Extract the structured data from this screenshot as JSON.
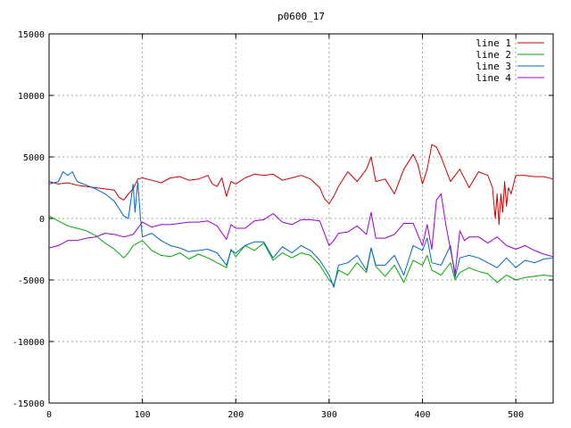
{
  "chart_data": {
    "type": "line",
    "title": "p0600_17",
    "xlabel": "",
    "ylabel": "",
    "xlim": [
      0,
      540
    ],
    "ylim": [
      -15000,
      15000
    ],
    "xticks": [
      0,
      100,
      200,
      300,
      400,
      500
    ],
    "yticks": [
      -15000,
      -10000,
      -5000,
      0,
      5000,
      10000,
      15000
    ],
    "grid": true,
    "legend_position": "top-right",
    "series": [
      {
        "name": "line 1",
        "color": "#cc0000",
        "x": [
          0,
          10,
          20,
          30,
          40,
          50,
          60,
          70,
          75,
          80,
          85,
          90,
          95,
          100,
          110,
          120,
          130,
          140,
          150,
          160,
          170,
          175,
          180,
          185,
          190,
          195,
          200,
          210,
          220,
          230,
          240,
          250,
          260,
          270,
          280,
          290,
          295,
          300,
          305,
          310,
          320,
          330,
          340,
          345,
          350,
          360,
          370,
          380,
          390,
          395,
          400,
          405,
          410,
          415,
          420,
          430,
          440,
          450,
          460,
          470,
          475,
          478,
          480,
          482,
          484,
          486,
          488,
          490,
          492,
          495,
          500,
          510,
          520,
          530,
          540
        ],
        "y": [
          3000,
          2800,
          2900,
          2700,
          2600,
          2500,
          2400,
          2300,
          1700,
          1500,
          2000,
          2400,
          3200,
          3300,
          3100,
          2900,
          3300,
          3400,
          3100,
          3200,
          3500,
          2800,
          2600,
          3300,
          1800,
          3000,
          2800,
          3300,
          3600,
          3500,
          3600,
          3100,
          3300,
          3500,
          3200,
          2500,
          1600,
          1200,
          1800,
          2600,
          3800,
          3000,
          4000,
          5000,
          3000,
          3200,
          2000,
          4000,
          5200,
          4400,
          2800,
          4000,
          6000,
          5800,
          5000,
          3000,
          4000,
          2500,
          3800,
          3500,
          2500,
          0,
          2000,
          -500,
          2000,
          500,
          3000,
          1000,
          2500,
          2000,
          3500,
          3500,
          3400,
          3400,
          3200
        ]
      },
      {
        "name": "line 2",
        "color": "#00aa00",
        "x": [
          0,
          10,
          20,
          30,
          40,
          50,
          60,
          70,
          80,
          85,
          90,
          100,
          110,
          120,
          130,
          140,
          150,
          160,
          170,
          180,
          190,
          195,
          200,
          210,
          220,
          230,
          240,
          250,
          260,
          270,
          280,
          290,
          300,
          305,
          310,
          320,
          330,
          340,
          345,
          350,
          360,
          370,
          380,
          390,
          400,
          405,
          410,
          420,
          430,
          435,
          440,
          450,
          460,
          470,
          480,
          490,
          500,
          510,
          520,
          530,
          540
        ],
        "y": [
          200,
          -200,
          -600,
          -800,
          -1000,
          -1400,
          -2000,
          -2500,
          -3200,
          -2800,
          -2200,
          -1800,
          -2600,
          -3000,
          -3100,
          -2800,
          -3300,
          -2900,
          -3200,
          -3600,
          -4000,
          -2500,
          -3100,
          -2200,
          -2600,
          -2000,
          -3400,
          -2800,
          -3200,
          -2800,
          -3000,
          -3800,
          -5000,
          -5400,
          -4200,
          -4600,
          -3600,
          -4400,
          -2400,
          -3900,
          -4700,
          -3800,
          -5200,
          -3400,
          -3800,
          -3000,
          -4200,
          -4600,
          -3600,
          -5000,
          -4400,
          -4000,
          -4300,
          -4500,
          -5200,
          -4600,
          -5000,
          -4800,
          -4700,
          -4600,
          -4700
        ]
      },
      {
        "name": "line 3",
        "color": "#0066cc",
        "x": [
          0,
          10,
          15,
          20,
          25,
          30,
          40,
          50,
          60,
          70,
          80,
          85,
          90,
          92,
          95,
          98,
          100,
          110,
          120,
          130,
          140,
          150,
          160,
          170,
          180,
          190,
          195,
          200,
          210,
          220,
          230,
          240,
          250,
          260,
          270,
          280,
          290,
          300,
          305,
          310,
          320,
          330,
          340,
          345,
          350,
          360,
          370,
          380,
          390,
          400,
          405,
          410,
          420,
          430,
          435,
          440,
          450,
          460,
          470,
          480,
          490,
          500,
          510,
          520,
          530,
          540
        ],
        "y": [
          2800,
          3000,
          3800,
          3500,
          3800,
          3000,
          2700,
          2400,
          2000,
          1400,
          200,
          0,
          2800,
          500,
          3000,
          0,
          -1500,
          -1200,
          -1800,
          -2200,
          -2400,
          -2700,
          -2600,
          -2500,
          -2800,
          -3800,
          -2600,
          -2800,
          -2200,
          -1900,
          -1900,
          -3200,
          -2300,
          -2800,
          -2200,
          -2600,
          -3400,
          -4600,
          -5600,
          -3800,
          -3600,
          -3000,
          -4200,
          -2400,
          -3800,
          -3800,
          -3000,
          -4600,
          -2200,
          -2600,
          -1600,
          -3600,
          -3800,
          -2200,
          -4800,
          -3200,
          -3000,
          -3200,
          -3600,
          -4000,
          -3200,
          -4000,
          -3400,
          -3600,
          -3300,
          -3200
        ]
      },
      {
        "name": "line 4",
        "color": "#9900cc",
        "x": [
          0,
          10,
          20,
          30,
          40,
          50,
          60,
          70,
          80,
          90,
          100,
          110,
          120,
          130,
          140,
          150,
          160,
          170,
          180,
          190,
          195,
          200,
          210,
          220,
          230,
          240,
          250,
          260,
          270,
          280,
          290,
          300,
          305,
          310,
          320,
          330,
          340,
          345,
          350,
          360,
          370,
          380,
          390,
          400,
          405,
          410,
          415,
          420,
          425,
          430,
          435,
          440,
          445,
          450,
          460,
          470,
          480,
          490,
          500,
          510,
          520,
          530,
          540
        ],
        "y": [
          -2400,
          -2200,
          -1800,
          -1800,
          -1600,
          -1500,
          -1200,
          -1300,
          -1500,
          -1300,
          -300,
          -700,
          -500,
          -500,
          -400,
          -300,
          -300,
          -200,
          -600,
          -1700,
          -500,
          -800,
          -800,
          -200,
          -100,
          400,
          -300,
          -500,
          -100,
          -100,
          -200,
          -2200,
          -1800,
          -1200,
          -1100,
          -600,
          -1300,
          500,
          -1600,
          -1600,
          -1300,
          -400,
          -400,
          -2200,
          -500,
          -2500,
          1500,
          2000,
          -500,
          -2500,
          -4500,
          -1000,
          -1800,
          -1500,
          -1500,
          -2000,
          -1500,
          -2200,
          -2500,
          -2200,
          -2600,
          -2900,
          -3100
        ]
      }
    ]
  }
}
